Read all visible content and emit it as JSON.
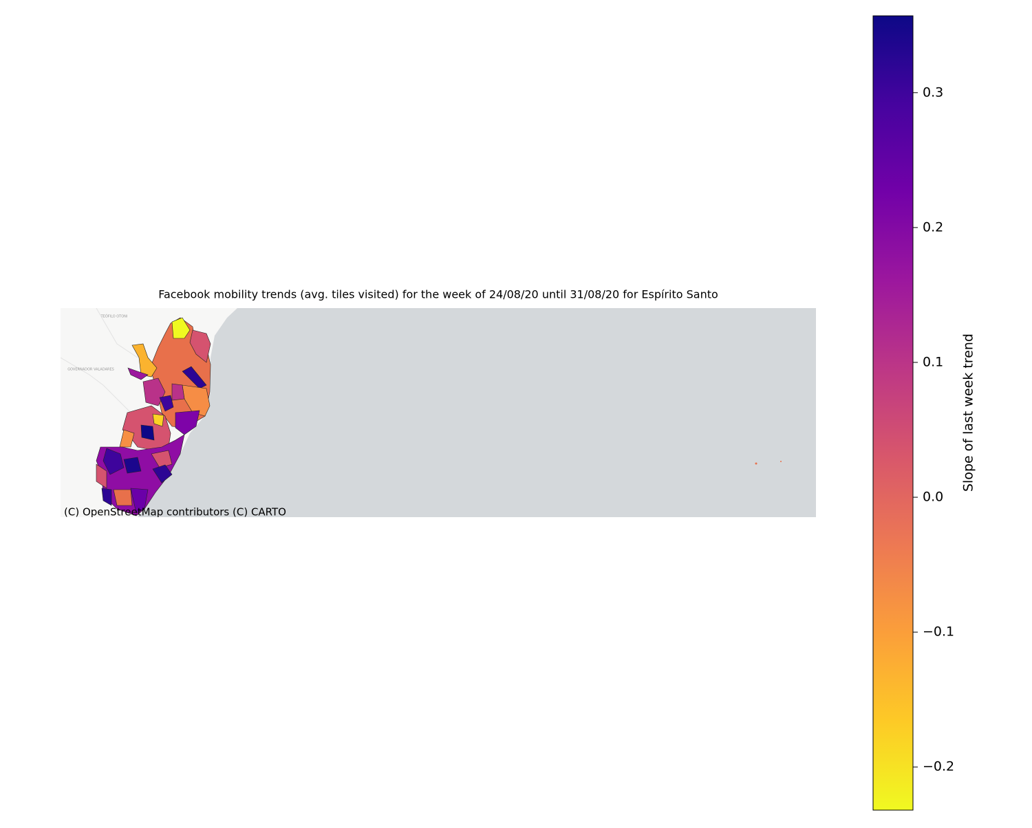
{
  "map": {
    "title": "Facebook mobility trends (avg. tiles visited) for the week of 24/08/20 until 31/08/20 for Espírito Santo",
    "attribution": "(C) OpenStreetMap contributors (C) CARTO",
    "basemap_labels": [
      "TEÓFILO OTONI",
      "GOVERNADOR VALADARES"
    ],
    "colorbar": {
      "label": "Slope of last week trend",
      "colormap": "plasma_r",
      "lim": [
        -0.232,
        0.357
      ],
      "ticks": [
        {
          "value": -0.2,
          "label": "−0.2"
        },
        {
          "value": -0.1,
          "label": "−0.1"
        },
        {
          "value": 0,
          "label": "0.0"
        },
        0.1,
        0.2,
        0.3
      ]
    }
  }
}
